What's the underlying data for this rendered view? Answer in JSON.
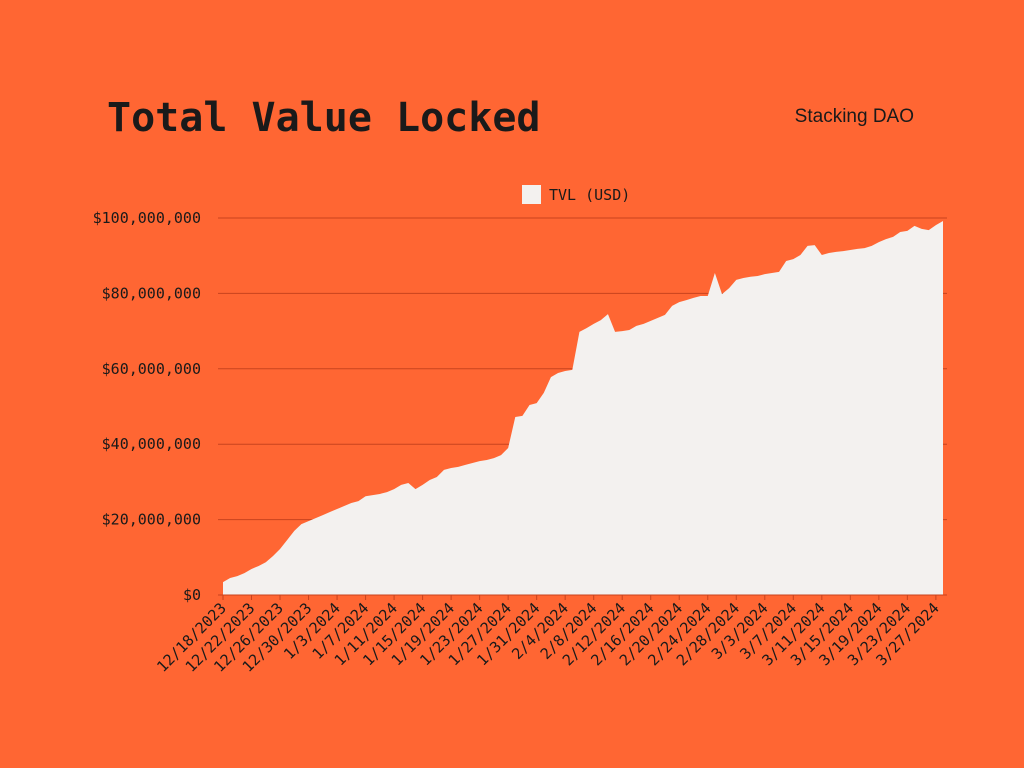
{
  "chart_data": {
    "type": "area",
    "title": "Total Value Locked",
    "subtitle": "Stacking DAO",
    "background": "#ff6633",
    "grid": true,
    "legend": "top",
    "categories": [
      "12/18/2023",
      null,
      null,
      null,
      "12/22/2023",
      null,
      null,
      null,
      "12/26/2023",
      null,
      null,
      null,
      "12/30/2023",
      null,
      null,
      null,
      "1/3/2024",
      null,
      null,
      null,
      "1/7/2024",
      null,
      null,
      null,
      "1/11/2024",
      null,
      null,
      null,
      "1/15/2024",
      null,
      null,
      null,
      "1/19/2024",
      null,
      null,
      null,
      "1/23/2024",
      null,
      null,
      null,
      "1/27/2024",
      null,
      null,
      null,
      "1/31/2024",
      null,
      null,
      null,
      "2/4/2024",
      null,
      null,
      null,
      "2/8/2024",
      null,
      null,
      null,
      "2/12/2024",
      null,
      null,
      null,
      "2/16/2024",
      null,
      null,
      null,
      "2/20/2024",
      null,
      null,
      null,
      "2/24/2024",
      null,
      null,
      null,
      "2/28/2024",
      null,
      null,
      null,
      "3/3/2024",
      null,
      null,
      null,
      "3/7/2024",
      null,
      null,
      null,
      "3/11/2024",
      null,
      null,
      null,
      "3/15/2024",
      null,
      null,
      null,
      "3/19/2024",
      null,
      null,
      null,
      "3/23/2024",
      null,
      null,
      null,
      "3/27/2024",
      null
    ],
    "series": [
      {
        "name": "TVL (USD)",
        "color": "#f3f1ef",
        "values": [
          3400000,
          4500000,
          5000000,
          5800000,
          6900000,
          7700000,
          8700000,
          10300000,
          12200000,
          14600000,
          17000000,
          18800000,
          19600000,
          20400000,
          21200000,
          22000000,
          22800000,
          23600000,
          24400000,
          24900000,
          26200000,
          26500000,
          26800000,
          27300000,
          28100000,
          29200000,
          29700000,
          28100000,
          29200000,
          30500000,
          31300000,
          33200000,
          33700000,
          34000000,
          34500000,
          35000000,
          35500000,
          35800000,
          36300000,
          37100000,
          39000000,
          47200000,
          47500000,
          50400000,
          50900000,
          53600000,
          57800000,
          58900000,
          59400000,
          59700000,
          69800000,
          70800000,
          71900000,
          72900000,
          74500000,
          69800000,
          70000000,
          70300000,
          71400000,
          71900000,
          72700000,
          73500000,
          74300000,
          76700000,
          77700000,
          78200000,
          78800000,
          79300000,
          79300000,
          85400000,
          79800000,
          81400000,
          83600000,
          84100000,
          84400000,
          84600000,
          85100000,
          85400000,
          85700000,
          88600000,
          89100000,
          90200000,
          92600000,
          92800000,
          90200000,
          90700000,
          91000000,
          91200000,
          91500000,
          91800000,
          92000000,
          92600000,
          93600000,
          94400000,
          95000000,
          96300000,
          96600000,
          97900000,
          97100000,
          96800000,
          98100000,
          99200000
        ]
      }
    ],
    "ylim": [
      0,
      100000000
    ],
    "yticks": [
      {
        "value": 0,
        "label": "$0"
      },
      {
        "value": 20000000,
        "label": "$20,000,000"
      },
      {
        "value": 40000000,
        "label": "$40,000,000"
      },
      {
        "value": 60000000,
        "label": "$60,000,000"
      },
      {
        "value": 80000000,
        "label": "$80,000,000"
      },
      {
        "value": 100000000,
        "label": "$100,000,000"
      }
    ]
  }
}
